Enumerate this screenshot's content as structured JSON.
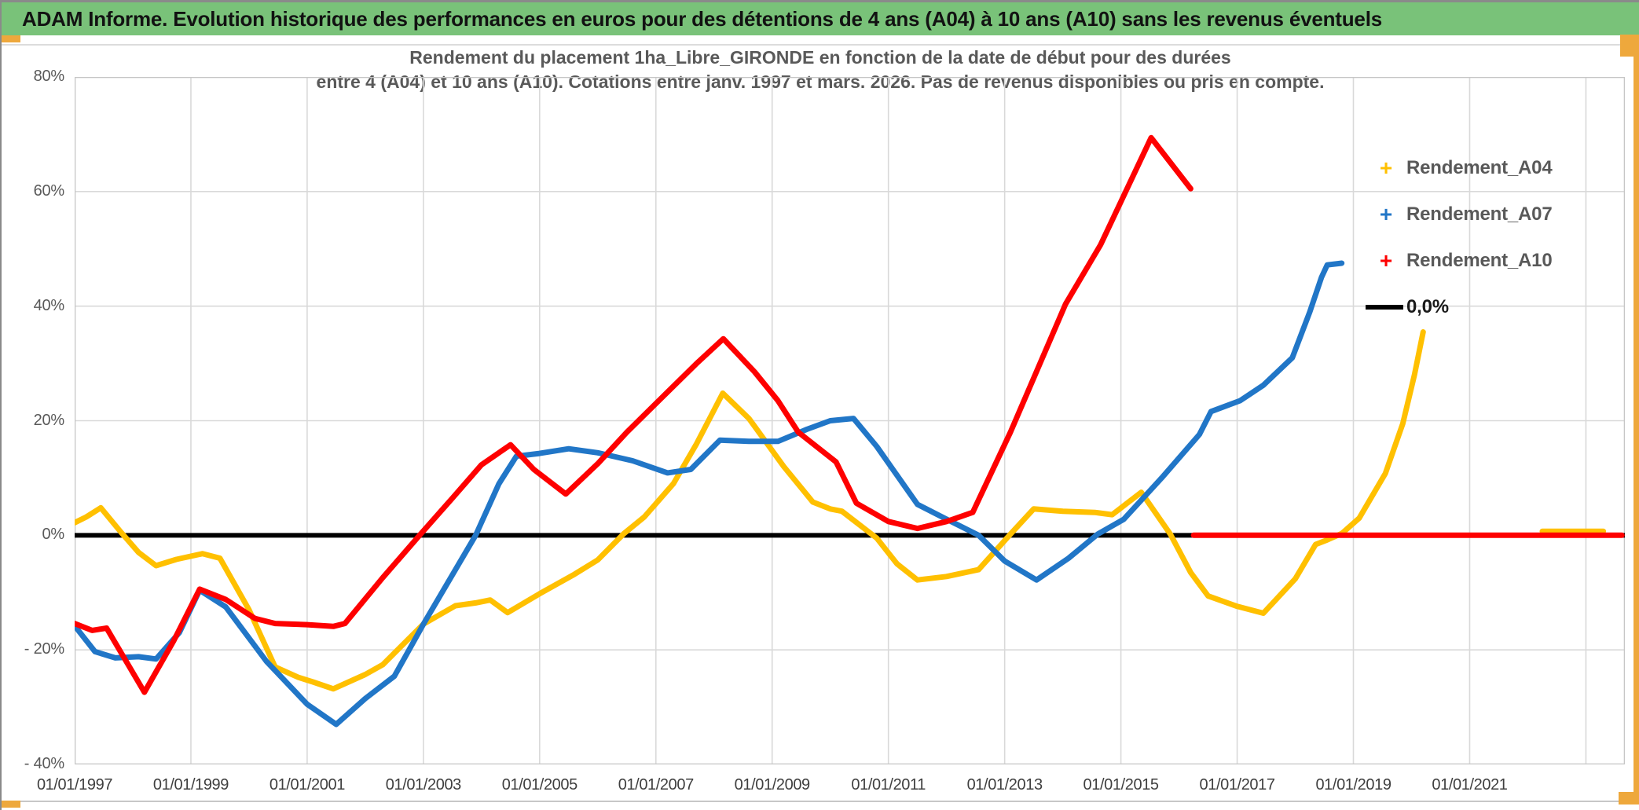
{
  "header": {
    "title": "ADAM Informe. Evolution historique des performances en euros pour des détentions de 4 ans (A04) à 10 ans (A10) sans les revenus éventuels",
    "bg_color": "#79C279",
    "accent_color": "#EEA83C"
  },
  "chart_data": {
    "type": "line",
    "title_line1": "Rendement du placement 1ha_Libre_GIRONDE en fonction de la date de début pour des durées",
    "title_line2": "entre 4 (A04) et 10 ans (A10). Cotations entre janv. 1997 et mars. 2026. Pas de revenus disponibles ou pris en compte.",
    "x_range": [
      1997,
      2023.67
    ],
    "y_range": [
      -40,
      80
    ],
    "grid_on": true,
    "x_tick_years": [
      1997,
      1999,
      2001,
      2003,
      2005,
      2007,
      2009,
      2011,
      2013,
      2015,
      2017,
      2019,
      2021
    ],
    "x_tick_labels": [
      "01/01/1997",
      "01/01/1999",
      "01/01/2001",
      "01/01/2003",
      "01/01/2005",
      "01/01/2007",
      "01/01/2009",
      "01/01/2011",
      "01/01/2013",
      "01/01/2015",
      "01/01/2017",
      "01/01/2019",
      "01/01/2021"
    ],
    "gridline_years": [
      1999,
      2001,
      2003,
      2005,
      2007,
      2009,
      2011,
      2013,
      2015,
      2017,
      2019,
      2021,
      2023
    ],
    "y_ticks": [
      80,
      60,
      40,
      20,
      0,
      -20,
      -40
    ],
    "y_tick_labels": [
      "80%",
      "60%",
      "40%",
      "20%",
      "0%",
      "- 20%",
      "- 40%"
    ],
    "y_gridline_values": [
      60,
      40,
      20,
      -20
    ],
    "zero_line": {
      "label": "0,0%",
      "value": 0,
      "color": "#000000"
    },
    "series": [
      {
        "name": "Rendement_A04",
        "color": "#FFC000",
        "segments": [
          [
            [
              1997.0,
              2.2
            ],
            [
              1997.2,
              3.2
            ],
            [
              1997.45,
              4.8
            ],
            [
              1997.8,
              0.5
            ],
            [
              1998.1,
              -3.0
            ],
            [
              1998.4,
              -5.3
            ],
            [
              1998.75,
              -4.2
            ],
            [
              1999.2,
              -3.2
            ],
            [
              1999.5,
              -4.0
            ],
            [
              2000.0,
              -13.0
            ],
            [
              2000.45,
              -23.0
            ],
            [
              2000.85,
              -24.8
            ],
            [
              2001.1,
              -25.6
            ],
            [
              2001.45,
              -26.8
            ],
            [
              2002.0,
              -24.3
            ],
            [
              2002.3,
              -22.6
            ],
            [
              2003.0,
              -15.5
            ],
            [
              2003.55,
              -12.3
            ],
            [
              2003.9,
              -11.8
            ],
            [
              2004.15,
              -11.3
            ],
            [
              2004.45,
              -13.5
            ],
            [
              2005.0,
              -10.2
            ],
            [
              2005.6,
              -6.8
            ],
            [
              2006.0,
              -4.3
            ],
            [
              2006.45,
              0.3
            ],
            [
              2006.8,
              3.2
            ],
            [
              2007.3,
              9.0
            ],
            [
              2007.7,
              16.0
            ],
            [
              2008.15,
              24.8
            ],
            [
              2008.6,
              20.4
            ],
            [
              2009.2,
              12.0
            ],
            [
              2009.7,
              5.8
            ],
            [
              2010.0,
              4.6
            ],
            [
              2010.2,
              4.2
            ],
            [
              2010.8,
              -0.5
            ],
            [
              2011.15,
              -5.0
            ],
            [
              2011.5,
              -7.8
            ],
            [
              2012.0,
              -7.2
            ],
            [
              2012.55,
              -6.0
            ],
            [
              2013.1,
              0.2
            ],
            [
              2013.5,
              4.6
            ],
            [
              2014.0,
              4.2
            ],
            [
              2014.55,
              4.0
            ],
            [
              2014.85,
              3.6
            ],
            [
              2015.35,
              7.5
            ],
            [
              2015.85,
              0.2
            ],
            [
              2016.2,
              -6.5
            ],
            [
              2016.5,
              -10.6
            ],
            [
              2017.0,
              -12.4
            ],
            [
              2017.45,
              -13.6
            ],
            [
              2018.0,
              -7.6
            ],
            [
              2018.35,
              -1.6
            ],
            [
              2018.55,
              -0.8
            ],
            [
              2018.8,
              0.3
            ],
            [
              2019.1,
              3.0
            ],
            [
              2019.55,
              10.8
            ],
            [
              2019.85,
              19.5
            ],
            [
              2020.05,
              28.0
            ],
            [
              2020.2,
              35.5
            ]
          ],
          [
            [
              2022.25,
              0.7
            ],
            [
              2023.3,
              0.7
            ]
          ]
        ]
      },
      {
        "name": "Rendement_A07",
        "color": "#2176C7",
        "segments": [
          [
            [
              1997.0,
              -15.8
            ],
            [
              1997.35,
              -20.3
            ],
            [
              1997.7,
              -21.4
            ],
            [
              1998.1,
              -21.2
            ],
            [
              1998.4,
              -21.6
            ],
            [
              1998.8,
              -17.0
            ],
            [
              1999.15,
              -9.6
            ],
            [
              1999.6,
              -12.5
            ],
            [
              2000.3,
              -22.0
            ],
            [
              2001.0,
              -29.5
            ],
            [
              2001.5,
              -33.0
            ],
            [
              2002.0,
              -28.5
            ],
            [
              2002.5,
              -24.6
            ],
            [
              2003.0,
              -15.5
            ],
            [
              2003.9,
              0.0
            ],
            [
              2004.3,
              9.0
            ],
            [
              2004.6,
              13.8
            ],
            [
              2005.0,
              14.3
            ],
            [
              2005.5,
              15.1
            ],
            [
              2006.0,
              14.4
            ],
            [
              2006.6,
              13.0
            ],
            [
              2007.2,
              10.9
            ],
            [
              2007.6,
              11.5
            ],
            [
              2008.1,
              16.6
            ],
            [
              2008.6,
              16.4
            ],
            [
              2009.1,
              16.4
            ],
            [
              2009.6,
              18.5
            ],
            [
              2010.0,
              20.0
            ],
            [
              2010.4,
              20.4
            ],
            [
              2010.8,
              15.5
            ],
            [
              2011.5,
              5.4
            ],
            [
              2012.0,
              2.8
            ],
            [
              2012.55,
              0.0
            ],
            [
              2013.0,
              -4.5
            ],
            [
              2013.55,
              -7.8
            ],
            [
              2014.1,
              -4.0
            ],
            [
              2014.6,
              0.2
            ],
            [
              2015.05,
              2.8
            ],
            [
              2015.7,
              10.0
            ],
            [
              2016.35,
              17.6
            ],
            [
              2016.55,
              21.6
            ],
            [
              2017.05,
              23.5
            ],
            [
              2017.45,
              26.2
            ],
            [
              2017.95,
              31.0
            ],
            [
              2018.25,
              39.0
            ],
            [
              2018.45,
              45.0
            ],
            [
              2018.55,
              47.2
            ],
            [
              2018.8,
              47.5
            ]
          ]
        ]
      },
      {
        "name": "Rendement_A10",
        "color": "#FE0000",
        "segments": [
          [
            [
              1997.0,
              -15.4
            ],
            [
              1997.3,
              -16.6
            ],
            [
              1997.55,
              -16.2
            ],
            [
              1998.2,
              -27.4
            ],
            [
              1998.7,
              -18.5
            ],
            [
              1999.15,
              -9.4
            ],
            [
              1999.6,
              -11.2
            ],
            [
              2000.1,
              -14.5
            ],
            [
              2000.45,
              -15.4
            ],
            [
              2001.0,
              -15.6
            ],
            [
              2001.45,
              -15.9
            ],
            [
              2001.65,
              -15.4
            ],
            [
              2002.3,
              -7.4
            ],
            [
              2002.95,
              0.2
            ],
            [
              2003.5,
              6.5
            ],
            [
              2004.0,
              12.3
            ],
            [
              2004.5,
              15.8
            ],
            [
              2004.9,
              11.5
            ],
            [
              2005.45,
              7.2
            ],
            [
              2006.0,
              12.5
            ],
            [
              2006.5,
              18.0
            ],
            [
              2007.2,
              25.0
            ],
            [
              2007.7,
              30.0
            ],
            [
              2008.16,
              34.3
            ],
            [
              2008.7,
              28.5
            ],
            [
              2009.1,
              23.5
            ],
            [
              2009.45,
              18.0
            ],
            [
              2010.1,
              12.8
            ],
            [
              2010.45,
              5.6
            ],
            [
              2011.0,
              2.4
            ],
            [
              2011.5,
              1.2
            ],
            [
              2012.0,
              2.4
            ],
            [
              2012.45,
              4.0
            ],
            [
              2013.1,
              18.0
            ],
            [
              2014.05,
              40.4
            ],
            [
              2014.65,
              50.7
            ],
            [
              2015.52,
              69.4
            ],
            [
              2016.2,
              60.5
            ]
          ],
          [
            [
              2016.25,
              0
            ],
            [
              2023.62,
              0
            ]
          ]
        ]
      }
    ]
  },
  "legend": {
    "items": [
      {
        "label": "Rendement_A04",
        "color": "#FFC000",
        "marker": "plus"
      },
      {
        "label": "Rendement_A07",
        "color": "#2176C7",
        "marker": "plus"
      },
      {
        "label": "Rendement_A10",
        "color": "#FE0000",
        "marker": "plus"
      },
      {
        "label": "0,0%",
        "color": "#000000",
        "marker": "line"
      }
    ]
  }
}
